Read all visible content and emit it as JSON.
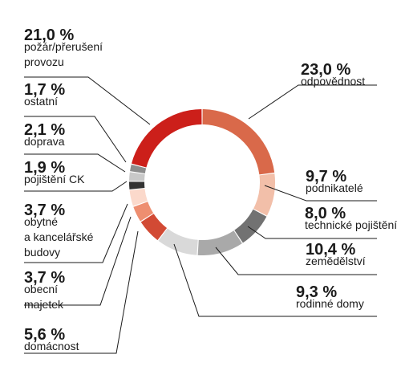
{
  "chart_data": {
    "type": "pie",
    "donut": true,
    "categories": [
      "odpovědnost",
      "podnikatelé",
      "technické pojištění",
      "zemědělství",
      "rodinné domy",
      "domácnost",
      "obecní majetek",
      "obytné a kancelářské budovy",
      "pojištění CK",
      "doprava",
      "ostatní",
      "požár/přerušení provozu"
    ],
    "values": [
      23.0,
      9.7,
      8.0,
      10.4,
      9.3,
      5.6,
      3.7,
      3.7,
      1.9,
      2.1,
      1.7,
      21.0
    ],
    "colors": [
      "#d9694a",
      "#f2bfa9",
      "#727272",
      "#a9a9a9",
      "#d9d9d9",
      "#d24a34",
      "#ee8e70",
      "#fbd9cb",
      "#333333",
      "#c8c8c8",
      "#8c8c8c",
      "#cc1f1a"
    ],
    "value_labels": [
      "23,0 %",
      "9,7 %",
      "8,0 %",
      "10,4 %",
      "9,3 %",
      "5,6 %",
      "3,7 %",
      "3,7 %",
      "1,9 %",
      "2,1 %",
      "1,7 %",
      "21,0 %"
    ],
    "label_lines": [
      [
        "odpovědnost"
      ],
      [
        "podnikatelé"
      ],
      [
        "technické pojištění"
      ],
      [
        "zemědělství"
      ],
      [
        "rodinné domy"
      ],
      [
        "domácnost"
      ],
      [
        "obecní",
        "majetek"
      ],
      [
        "obytné",
        "a kancelářské",
        "budovy"
      ],
      [
        "pojištění CK"
      ],
      [
        "doprava"
      ],
      [
        "ostatní"
      ],
      [
        "požár/přerušení",
        "provozu"
      ]
    ]
  }
}
